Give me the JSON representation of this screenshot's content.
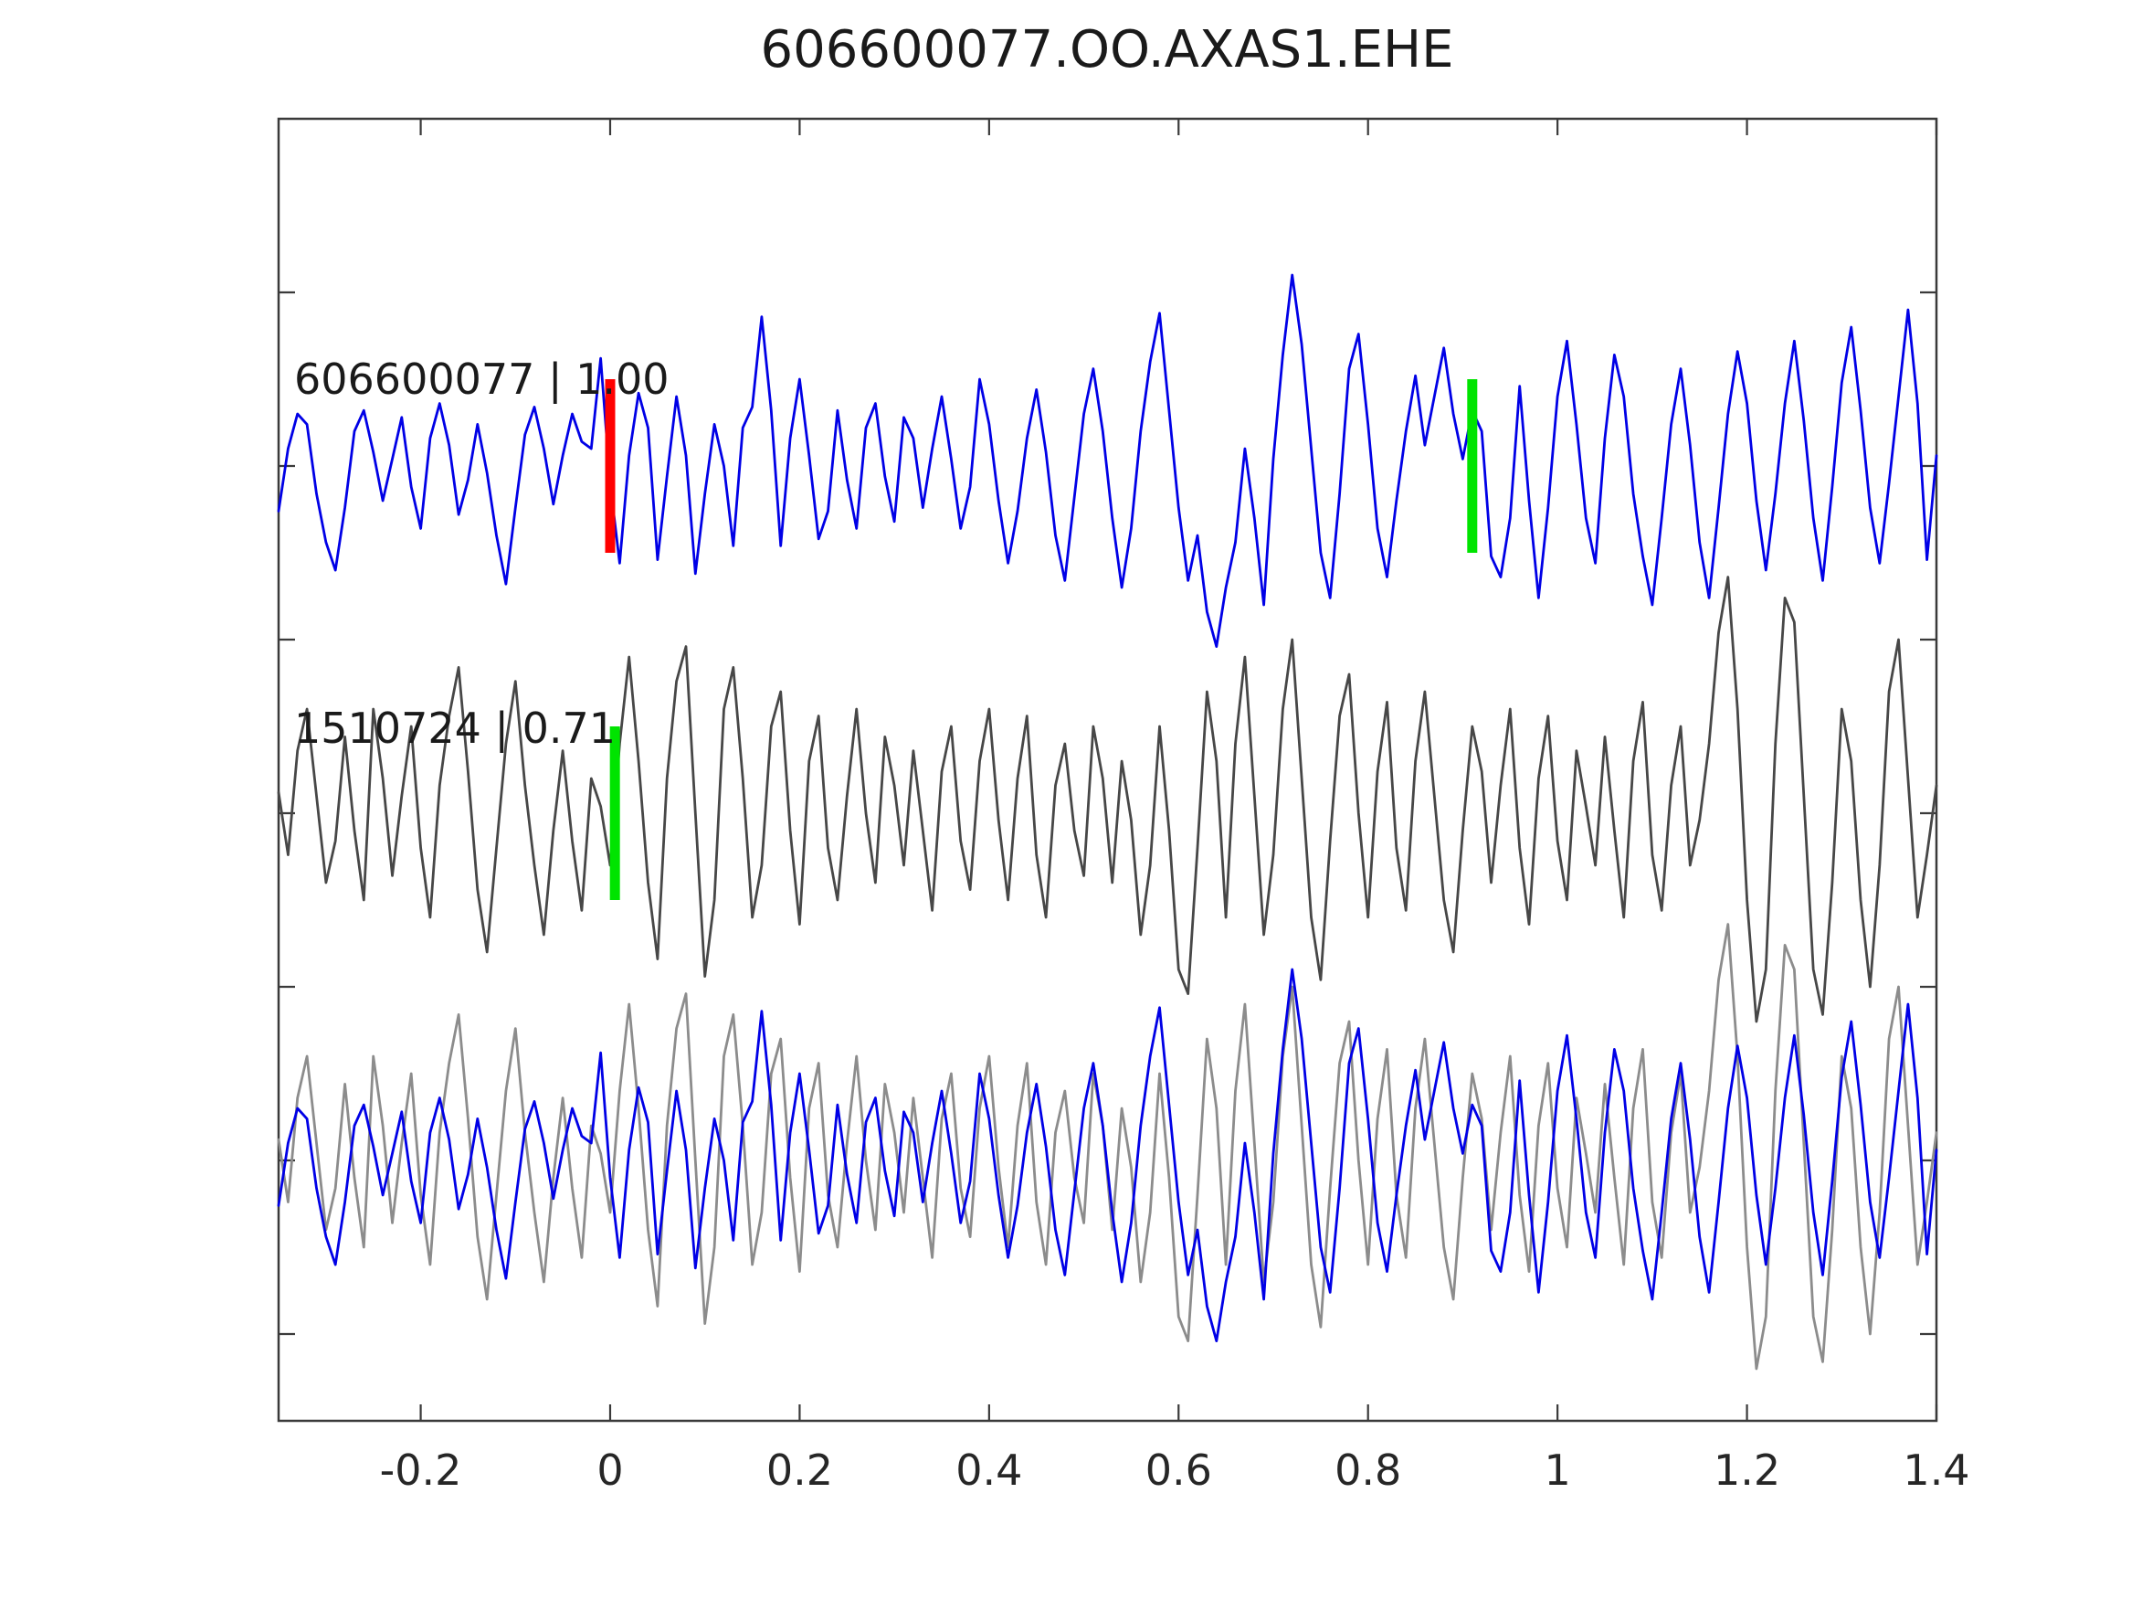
{
  "figure": {
    "title": "606600077.OO.AXAS1.EHE"
  },
  "chart_data": {
    "type": "line",
    "title": "606600077.OO.AXAS1.EHE",
    "xlabel": "",
    "ylabel": "",
    "xlim": [
      -0.35,
      1.4
    ],
    "ylim": [
      -0.75,
      3.0
    ],
    "xticks": [
      -0.2,
      0,
      0.2,
      0.4,
      0.6,
      0.8,
      1,
      1.2,
      1.4
    ],
    "xtick_labels": [
      "-0.2",
      "0",
      "0.2",
      "0.4",
      "0.6",
      "0.8",
      "1",
      "1.2",
      "1.4"
    ],
    "yticks": [
      -0.5,
      0,
      0.5,
      1,
      1.5,
      2,
      2.5
    ],
    "ytick_labels": [
      "",
      "",
      "",
      "",
      "",
      "",
      ""
    ],
    "grid": false,
    "legend": "none",
    "frame_color": "#3a3a3a",
    "tick_color": "#3a3a3a",
    "text_color": "#1a1a1a",
    "tick_length": 18,
    "x_start": -0.35,
    "dt": 0.01,
    "traces": [
      {
        "name": "template-trace",
        "label": "606600077 | 1.00",
        "id": "606600077",
        "correlation": "1.00",
        "color": "#0000e6",
        "offset": 2.0,
        "values": [
          -0.13,
          0.05,
          0.15,
          0.12,
          -0.08,
          -0.22,
          -0.3,
          -0.12,
          0.1,
          0.16,
          0.04,
          -0.1,
          0.02,
          0.14,
          -0.06,
          -0.18,
          0.08,
          0.18,
          0.06,
          -0.14,
          -0.04,
          0.12,
          -0.02,
          -0.2,
          -0.34,
          -0.12,
          0.09,
          0.17,
          0.05,
          -0.11,
          0.03,
          0.15,
          0.07,
          0.05,
          0.31,
          -0.05,
          -0.28,
          0.03,
          0.21,
          0.11,
          -0.27,
          -0.03,
          0.2,
          0.03,
          -0.31,
          -0.08,
          0.12,
          0.0,
          -0.23,
          0.11,
          0.17,
          0.43,
          0.16,
          -0.23,
          0.08,
          0.25,
          0.03,
          -0.21,
          -0.13,
          0.16,
          -0.04,
          -0.18,
          0.11,
          0.18,
          -0.03,
          -0.16,
          0.14,
          0.08,
          -0.12,
          0.05,
          0.2,
          0.02,
          -0.18,
          -0.06,
          0.25,
          0.12,
          -0.1,
          -0.28,
          -0.13,
          0.08,
          0.22,
          0.04,
          -0.2,
          -0.33,
          -0.09,
          0.15,
          0.28,
          0.1,
          -0.15,
          -0.35,
          -0.18,
          0.1,
          0.3,
          0.44,
          0.16,
          -0.12,
          -0.33,
          -0.2,
          -0.42,
          -0.52,
          -0.35,
          -0.22,
          0.05,
          -0.15,
          -0.4,
          0.02,
          0.32,
          0.55,
          0.35,
          0.05,
          -0.25,
          -0.38,
          -0.08,
          0.28,
          0.38,
          0.12,
          -0.18,
          -0.32,
          -0.1,
          0.1,
          0.26,
          0.06,
          0.2,
          0.34,
          0.15,
          0.02,
          0.16,
          0.1,
          -0.26,
          -0.32,
          -0.15,
          0.23,
          -0.1,
          -0.38,
          -0.12,
          0.2,
          0.36,
          0.12,
          -0.15,
          -0.28,
          0.08,
          0.32,
          0.2,
          -0.08,
          -0.26,
          -0.4,
          -0.15,
          0.12,
          0.28,
          0.06,
          -0.22,
          -0.38,
          -0.12,
          0.15,
          0.33,
          0.18,
          -0.1,
          -0.3,
          -0.08,
          0.18,
          0.36,
          0.13,
          -0.15,
          -0.33,
          -0.06,
          0.24,
          0.4,
          0.16,
          -0.12,
          -0.28,
          -0.05,
          0.2,
          0.45,
          0.18,
          -0.27,
          0.03
        ]
      },
      {
        "name": "detection-trace",
        "label": "1510724 | 0.71",
        "id": "1510724",
        "correlation": "0.71",
        "color": "#474747",
        "offset": 1.0,
        "values": [
          0.06,
          -0.12,
          0.18,
          0.3,
          0.05,
          -0.2,
          -0.08,
          0.22,
          -0.05,
          -0.25,
          0.3,
          0.1,
          -0.18,
          0.05,
          0.25,
          -0.1,
          -0.3,
          0.08,
          0.28,
          0.42,
          0.12,
          -0.22,
          -0.4,
          -0.1,
          0.2,
          0.38,
          0.08,
          -0.15,
          -0.35,
          -0.05,
          0.18,
          -0.08,
          -0.28,
          0.1,
          0.02,
          -0.15,
          0.2,
          0.45,
          0.15,
          -0.2,
          -0.42,
          0.1,
          0.38,
          0.48,
          0.0,
          -0.47,
          -0.25,
          0.3,
          0.42,
          0.1,
          -0.3,
          -0.15,
          0.25,
          0.35,
          -0.05,
          -0.32,
          0.15,
          0.28,
          -0.1,
          -0.25,
          0.05,
          0.3,
          0.0,
          -0.2,
          0.22,
          0.08,
          -0.15,
          0.18,
          -0.05,
          -0.28,
          0.12,
          0.25,
          -0.08,
          -0.22,
          0.15,
          0.3,
          -0.02,
          -0.25,
          0.1,
          0.28,
          -0.12,
          -0.3,
          0.08,
          0.2,
          -0.05,
          -0.18,
          0.25,
          0.1,
          -0.2,
          0.15,
          -0.02,
          -0.35,
          -0.15,
          0.25,
          -0.05,
          -0.45,
          -0.52,
          -0.1,
          0.35,
          0.15,
          -0.3,
          0.2,
          0.45,
          0.05,
          -0.35,
          -0.12,
          0.3,
          0.5,
          0.1,
          -0.3,
          -0.48,
          -0.08,
          0.28,
          0.4,
          0.0,
          -0.3,
          0.12,
          0.32,
          -0.1,
          -0.28,
          0.15,
          0.35,
          0.05,
          -0.25,
          -0.4,
          -0.05,
          0.25,
          0.12,
          -0.2,
          0.08,
          0.3,
          -0.1,
          -0.32,
          0.1,
          0.28,
          -0.08,
          -0.25,
          0.18,
          0.02,
          -0.15,
          0.22,
          -0.05,
          -0.3,
          0.15,
          0.32,
          -0.12,
          -0.28,
          0.08,
          0.25,
          -0.15,
          -0.02,
          0.2,
          0.52,
          0.68,
          0.3,
          -0.25,
          -0.6,
          -0.45,
          0.2,
          0.62,
          0.55,
          0.05,
          -0.45,
          -0.58,
          -0.2,
          0.3,
          0.15,
          -0.25,
          -0.5,
          -0.15,
          0.35,
          0.5,
          0.1,
          -0.3,
          -0.12,
          0.08
        ]
      }
    ],
    "overlay": {
      "offset": 0.0,
      "layers": [
        {
          "trace_index": 1,
          "color": "#8c8c8c"
        },
        {
          "trace_index": 0,
          "color": "#0000e6"
        }
      ]
    },
    "markers": [
      {
        "name": "template-pick-marker",
        "color": "#ff0000",
        "t": 0.0,
        "center": 2.0,
        "half_height": 0.25,
        "width": 11
      },
      {
        "name": "template-green-marker",
        "color": "#00e400",
        "t": 0.91,
        "center": 2.0,
        "half_height": 0.25,
        "width": 11
      },
      {
        "name": "detection-pick-marker",
        "color": "#00e400",
        "t": 0.005,
        "center": 1.0,
        "half_height": 0.25,
        "width": 11
      }
    ],
    "line_width": 2.8
  }
}
